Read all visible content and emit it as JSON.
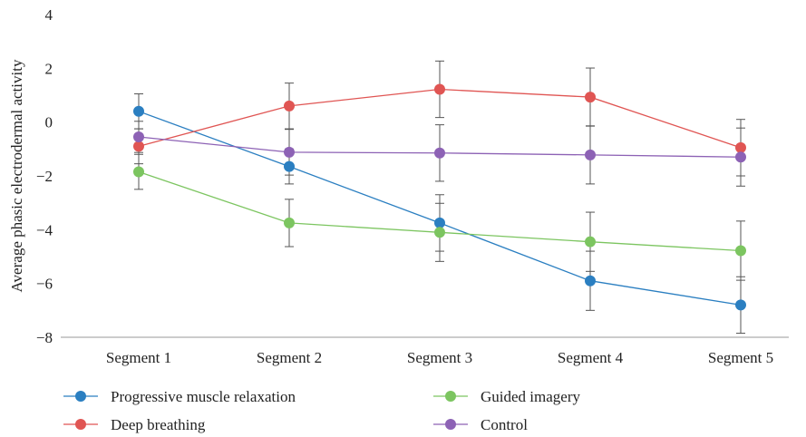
{
  "chart_data": {
    "type": "line",
    "ylabel": "Average phasic electrodermal activity",
    "xlabel": "",
    "ylim": [
      -8,
      4
    ],
    "yticks": [
      -8,
      -6,
      -4,
      -2,
      0,
      2,
      4
    ],
    "ytick_labels": [
      "−8",
      "−6",
      "−4",
      "−2",
      "0",
      "2",
      "4"
    ],
    "categories": [
      "Segment 1",
      "Segment 2",
      "Segment 3",
      "Segment 4",
      "Segment 5"
    ],
    "grid": false,
    "legend_position": "bottom",
    "series": [
      {
        "name": "Progressive muscle relaxation",
        "color": "#2b7fc1",
        "values": [
          0.4,
          -1.65,
          -3.75,
          -5.9,
          -6.8
        ],
        "error": [
          0.65,
          0.65,
          1.05,
          1.1,
          1.05
        ]
      },
      {
        "name": "Deep breathing",
        "color": "#e05553",
        "values": [
          -0.9,
          0.6,
          1.22,
          0.93,
          -0.95
        ],
        "error": [
          0.65,
          0.85,
          1.05,
          1.08,
          1.05
        ]
      },
      {
        "name": "Guided imagery",
        "color": "#7cc560",
        "values": [
          -1.85,
          -3.75,
          -4.1,
          -4.45,
          -4.78
        ],
        "error": [
          0.65,
          0.88,
          1.08,
          1.1,
          1.1
        ]
      },
      {
        "name": "Control",
        "color": "#8d62b5",
        "values": [
          -0.55,
          -1.12,
          -1.15,
          -1.22,
          -1.3
        ],
        "error": [
          0.58,
          0.85,
          1.05,
          1.08,
          1.08
        ]
      }
    ]
  }
}
